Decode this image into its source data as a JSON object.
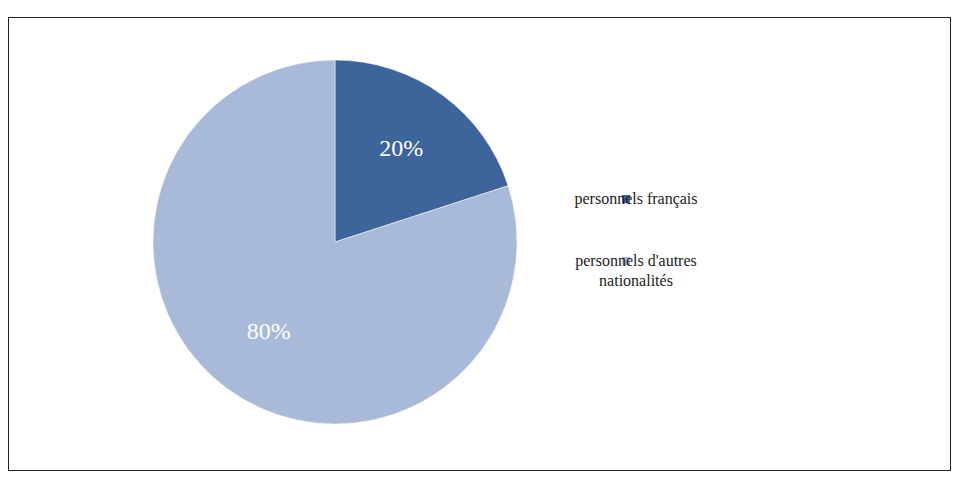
{
  "chart_data": {
    "type": "pie",
    "categories": [
      "personnels français",
      "personnels d'autres nationalités"
    ],
    "values": [
      20,
      80
    ],
    "value_labels": [
      "20%",
      "80%"
    ],
    "colors": [
      "#3e659b",
      "#a9b9d8"
    ],
    "data_labels": true,
    "legend": "right"
  }
}
